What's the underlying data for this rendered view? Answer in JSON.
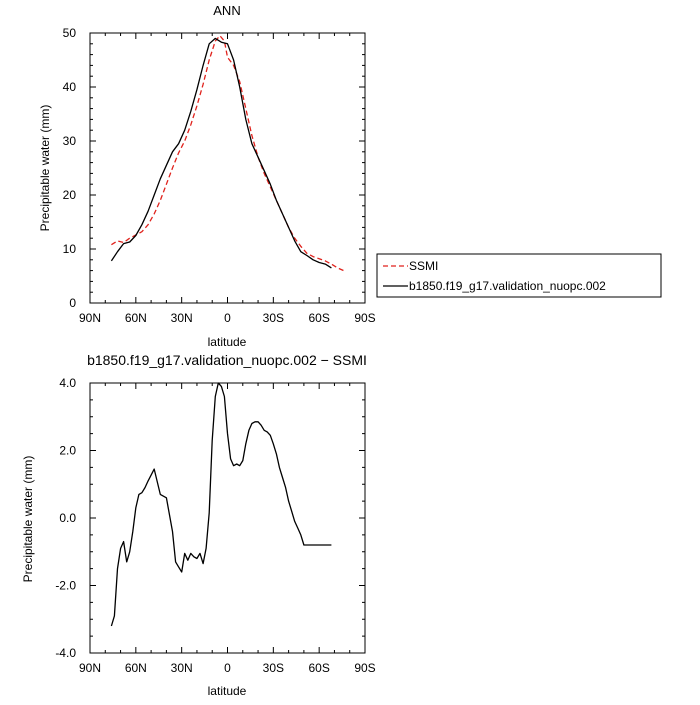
{
  "chart_data": [
    {
      "type": "line",
      "title": "ANN",
      "xlabel": "latitude",
      "ylabel": "Precipitable water (mm)",
      "xlim": [
        90,
        -90
      ],
      "ylim": [
        0,
        50
      ],
      "x_ticks": [
        "90N",
        "60N",
        "30N",
        "0",
        "30S",
        "60S",
        "90S"
      ],
      "y_ticks": [
        "0",
        "10",
        "20",
        "30",
        "40",
        "50"
      ],
      "legend_position": "right",
      "series": [
        {
          "name": "SSMI",
          "color": "#e0221c",
          "style": "dashed",
          "x": [
            76,
            72,
            68,
            64,
            60,
            56,
            52,
            48,
            44,
            40,
            36,
            32,
            28,
            24,
            20,
            16,
            12,
            8,
            5,
            2,
            0,
            -4,
            -8,
            -12,
            -16,
            -20,
            -24,
            -28,
            -32,
            -36,
            -40,
            -44,
            -48,
            -52,
            -56,
            -60,
            -64,
            -68,
            -72,
            -76
          ],
          "y": [
            10.8,
            11.5,
            11.2,
            12.0,
            12.6,
            13.2,
            14.5,
            16.5,
            19.0,
            22.0,
            25.0,
            27.8,
            30.0,
            33.0,
            36.5,
            40.5,
            45.0,
            48.5,
            49.5,
            48.5,
            45.5,
            44.0,
            41.0,
            36.0,
            31.0,
            27.0,
            24.0,
            21.5,
            19.0,
            16.5,
            14.0,
            12.0,
            10.5,
            9.2,
            8.6,
            8.2,
            7.8,
            7.2,
            6.5,
            6.0
          ]
        },
        {
          "name": "b1850.f19_g17.validation_nuopc.002",
          "color": "#000000",
          "style": "solid",
          "x": [
            76,
            72,
            68,
            64,
            60,
            56,
            52,
            48,
            44,
            40,
            36,
            32,
            28,
            24,
            20,
            16,
            12,
            8,
            4,
            0,
            -4,
            -8,
            -12,
            -16,
            -20,
            -24,
            -28,
            -32,
            -36,
            -40,
            -44,
            -48,
            -52,
            -56,
            -60,
            -64,
            -68
          ],
          "y": [
            7.8,
            9.5,
            11.0,
            11.3,
            12.5,
            14.5,
            17.0,
            20.0,
            23.0,
            25.5,
            28.0,
            29.5,
            32.0,
            35.5,
            39.5,
            44.0,
            48.0,
            49.0,
            48.3,
            48.0,
            45.0,
            40.0,
            34.0,
            29.5,
            27.0,
            24.5,
            22.0,
            19.0,
            16.5,
            14.0,
            11.5,
            9.5,
            8.8,
            8.0,
            7.5,
            7.2,
            6.5
          ]
        }
      ]
    },
    {
      "type": "line",
      "title": "b1850.f19_g17.validation_nuopc.002 − SSMI",
      "xlabel": "latitude",
      "ylabel": "Precipitable water (mm)",
      "xlim": [
        90,
        -90
      ],
      "ylim": [
        -4,
        4
      ],
      "x_ticks": [
        "90N",
        "60N",
        "30N",
        "0",
        "30S",
        "60S",
        "90S"
      ],
      "y_ticks": [
        "-4.0",
        "-2.0",
        "0.0",
        "2.0",
        "4.0"
      ],
      "series": [
        {
          "color": "#000000",
          "style": "solid",
          "x": [
            76,
            74,
            72,
            70,
            68,
            66,
            64,
            62,
            60,
            58,
            56,
            54,
            52,
            48,
            44,
            40,
            36,
            34,
            32,
            30,
            28,
            26,
            24,
            22,
            20,
            18,
            16,
            14,
            12,
            10,
            8,
            6,
            4,
            2,
            0,
            -2,
            -4,
            -6,
            -8,
            -10,
            -12,
            -14,
            -16,
            -18,
            -20,
            -22,
            -24,
            -26,
            -28,
            -30,
            -32,
            -34,
            -36,
            -38,
            -40,
            -42,
            -44,
            -46,
            -48,
            -50,
            -52,
            -54,
            -56,
            -58,
            -60,
            -62,
            -64,
            -66,
            -68
          ],
          "y": [
            -3.2,
            -2.9,
            -1.5,
            -0.9,
            -0.7,
            -1.3,
            -1.0,
            -0.4,
            0.3,
            0.7,
            0.75,
            0.9,
            1.1,
            1.45,
            0.7,
            0.6,
            -0.4,
            -1.3,
            -1.45,
            -1.6,
            -1.05,
            -1.25,
            -1.05,
            -1.15,
            -1.2,
            -1.05,
            -1.35,
            -0.9,
            0.15,
            2.3,
            3.6,
            4.0,
            3.9,
            3.6,
            2.5,
            1.75,
            1.55,
            1.6,
            1.55,
            1.7,
            2.2,
            2.6,
            2.8,
            2.85,
            2.85,
            2.75,
            2.6,
            2.55,
            2.45,
            2.2,
            1.9,
            1.5,
            1.2,
            0.9,
            0.5,
            0.2,
            -0.1,
            -0.3,
            -0.5,
            -0.8,
            -0.8,
            -0.8,
            -0.8,
            -0.8,
            -0.8,
            -0.8,
            -0.8,
            -0.8,
            -0.8
          ]
        }
      ]
    }
  ]
}
